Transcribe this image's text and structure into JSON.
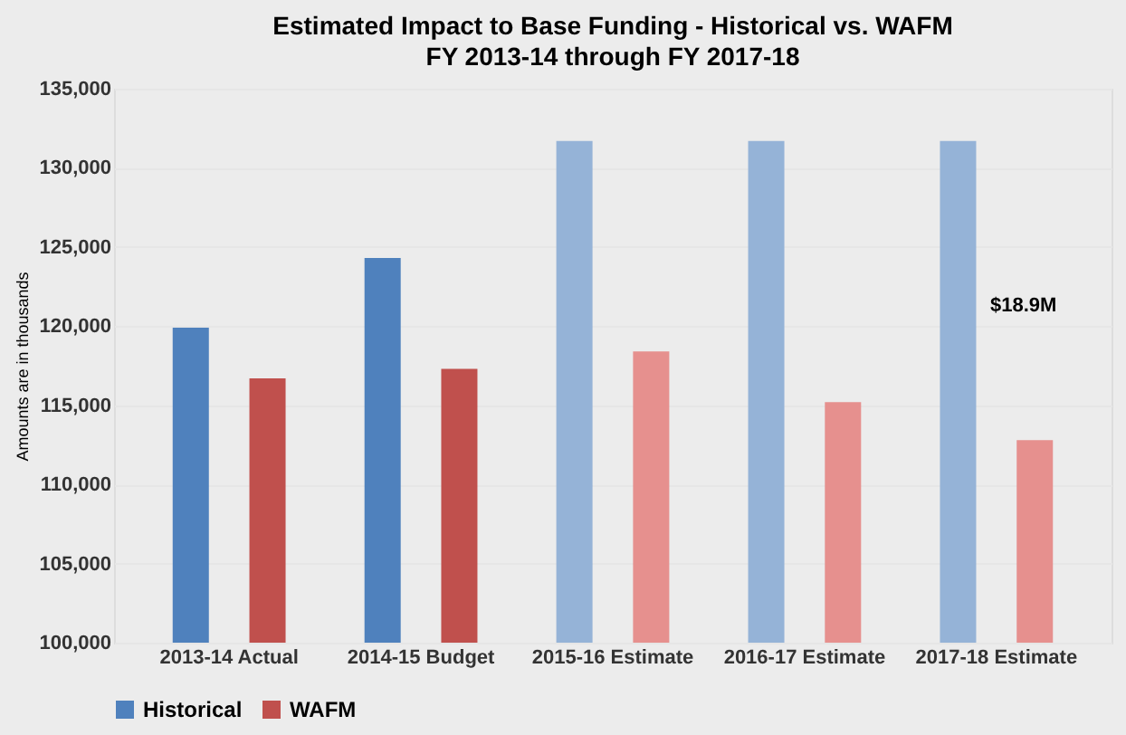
{
  "chart_data": {
    "type": "bar",
    "title": "Estimated Impact to Base Funding - Historical vs. WAFM",
    "subtitle": "FY 2013-14 through FY 2017-18",
    "ylabel": "Amounts are in thousands",
    "categories": [
      "2013-14 Actual",
      "2014-15 Budget",
      "2015-16 Estimate",
      "2016-17 Estimate",
      "2017-18 Estimate"
    ],
    "series": [
      {
        "name": "Historical",
        "color": "#4f81bd",
        "colors": [
          "#4f81bd",
          "#4f81bd",
          "#95b3d7",
          "#95b3d7",
          "#95b3d7"
        ],
        "values": [
          119900,
          124300,
          131700,
          131700,
          131700
        ]
      },
      {
        "name": "WAFM",
        "color": "#c0504d",
        "colors": [
          "#c0504d",
          "#c0504d",
          "#e6908e",
          "#e6908e",
          "#e6908e"
        ],
        "values": [
          116700,
          117300,
          118400,
          115200,
          112800
        ]
      }
    ],
    "ylim": [
      100000,
      135000
    ],
    "yticks": [
      {
        "value": 100000,
        "label": "100,000"
      },
      {
        "value": 105000,
        "label": "105,000"
      },
      {
        "value": 110000,
        "label": "110,000"
      },
      {
        "value": 115000,
        "label": "115,000"
      },
      {
        "value": 120000,
        "label": "120,000"
      },
      {
        "value": 125000,
        "label": "125,000"
      },
      {
        "value": 130000,
        "label": "130,000"
      },
      {
        "value": 135000,
        "label": "135,000"
      }
    ],
    "annotations": [
      "$18.9M"
    ],
    "grid": "y",
    "legend": "bottom"
  }
}
